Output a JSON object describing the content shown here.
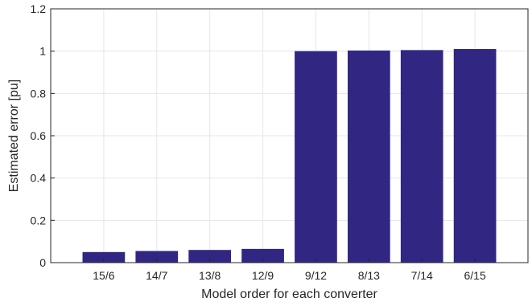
{
  "chart_data": {
    "type": "bar",
    "title": "",
    "xlabel": "Model order for each converter",
    "ylabel": "Estimated error [pu]",
    "categories": [
      "15/6",
      "14/7",
      "13/8",
      "12/9",
      "9/12",
      "8/13",
      "7/14",
      "6/15"
    ],
    "values": [
      0.05,
      0.055,
      0.06,
      0.065,
      1.0,
      1.003,
      1.005,
      1.01
    ],
    "ylim": [
      0,
      1.2
    ],
    "yticks": [
      "0",
      "0.2",
      "0.4",
      "0.6",
      "0.8",
      "1",
      "1.2"
    ],
    "yticks_values": [
      0,
      0.2,
      0.4,
      0.6,
      0.8,
      1.0,
      1.2
    ],
    "grid": true,
    "legend": "none",
    "colors": {
      "bar": "#312783"
    }
  }
}
